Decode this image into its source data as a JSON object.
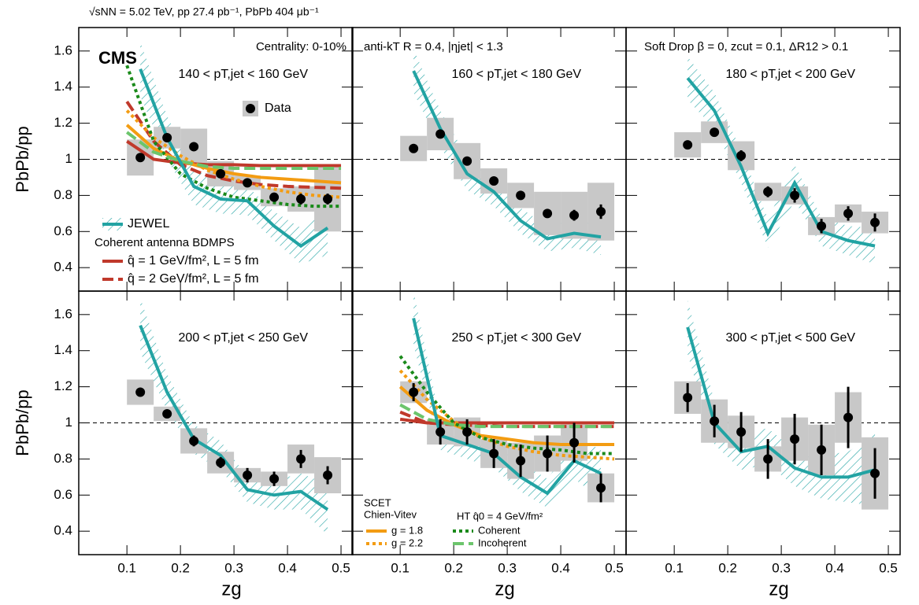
{
  "caption": "√sNN = 5.02 TeV, pp 27.4 pb⁻¹, PbPb 404 μb⁻¹",
  "chart_data": [
    {
      "type": "line",
      "title": "140 < pT,jet < 160 GeV",
      "ylabel": "PbPb/pp",
      "xlim": [
        0.01,
        0.522
      ],
      "ylim": [
        0.27,
        1.73
      ],
      "xticks": [
        0.1,
        0.2,
        0.3,
        0.4,
        0.5
      ],
      "yticks": [
        0.4,
        0.6,
        0.8,
        1,
        1.2,
        1.4,
        1.6
      ],
      "reference_line": 1,
      "annotations": [
        "CMS",
        "Centrality: 0-10%",
        "Coherent antenna BDMPS"
      ],
      "series": [
        {
          "name": "q̂ = 1 GeV/fm², L = 5 fm",
          "color": "#c0392b",
          "dash": "solid",
          "x": [
            0.1,
            0.15,
            0.2,
            0.25,
            0.3,
            0.35,
            0.4,
            0.45,
            0.5
          ],
          "values": [
            1.1,
            1.0,
            0.98,
            0.97,
            0.97,
            0.965,
            0.965,
            0.965,
            0.965
          ]
        },
        {
          "name": "q̂ = 2 GeV/fm², L = 5 fm",
          "color": "#c0392b",
          "dash": "dashed",
          "x": [
            0.1,
            0.15,
            0.2,
            0.25,
            0.3,
            0.35,
            0.4,
            0.45,
            0.5
          ],
          "values": [
            1.32,
            1.1,
            0.97,
            0.91,
            0.88,
            0.86,
            0.85,
            0.845,
            0.84
          ]
        },
        {
          "color": "#f39c12",
          "dash": "solid",
          "x": [
            0.1,
            0.15,
            0.2,
            0.25,
            0.3,
            0.35,
            0.4,
            0.45,
            0.5
          ],
          "values": [
            1.19,
            1.06,
            0.99,
            0.95,
            0.92,
            0.9,
            0.89,
            0.88,
            0.87
          ]
        },
        {
          "color": "#f39c12",
          "dash": "dotted",
          "x": [
            0.1,
            0.15,
            0.2,
            0.25,
            0.3,
            0.35,
            0.4,
            0.45,
            0.5
          ],
          "values": [
            1.27,
            1.12,
            1.02,
            0.94,
            0.89,
            0.85,
            0.82,
            0.8,
            0.79
          ]
        },
        {
          "color": "#1a8a1a",
          "dash": "dotted",
          "x": [
            0.1,
            0.15,
            0.2,
            0.25,
            0.3,
            0.35,
            0.4,
            0.45,
            0.5
          ],
          "values": [
            1.52,
            1.1,
            0.92,
            0.84,
            0.79,
            0.77,
            0.75,
            0.74,
            0.74
          ]
        },
        {
          "color": "#6cc56c",
          "dash": "dashed",
          "x": [
            0.1,
            0.15,
            0.2,
            0.25,
            0.3,
            0.35,
            0.4,
            0.45,
            0.5
          ],
          "values": [
            1.15,
            1.04,
            0.99,
            0.96,
            0.95,
            0.95,
            0.95,
            0.95,
            0.95
          ]
        },
        {
          "name": "JEWEL",
          "color": "#22a3a3",
          "x": [
            0.125,
            0.175,
            0.225,
            0.275,
            0.325,
            0.375,
            0.425,
            0.475
          ],
          "values": [
            1.5,
            1.12,
            0.85,
            0.78,
            0.77,
            0.63,
            0.52,
            0.62
          ],
          "band_errors": [
            0.15,
            0.12,
            0.1,
            0.08,
            0.08,
            0.08,
            0.1,
            0.15
          ]
        },
        {
          "name": "Data",
          "color": "#000000",
          "x": [
            0.125,
            0.175,
            0.225,
            0.275,
            0.325,
            0.375,
            0.425,
            0.475
          ],
          "values": [
            1.01,
            1.12,
            1.07,
            0.92,
            0.87,
            0.79,
            0.78,
            0.78
          ],
          "errors": [
            0.02,
            0.02,
            0.02,
            0.02,
            0.02,
            0.02,
            0.03,
            0.03
          ],
          "sys_errors": [
            0.1,
            0.06,
            0.1,
            0.07,
            0.04,
            0.05,
            0.07,
            0.18
          ]
        }
      ]
    },
    {
      "type": "line",
      "title": "160 < pT,jet < 180 GeV",
      "xlim": [
        0.01,
        0.522
      ],
      "ylim": [
        0.27,
        1.73
      ],
      "xticks": [
        0.1,
        0.2,
        0.3,
        0.4,
        0.5
      ],
      "yticks": [
        0.4,
        0.6,
        0.8,
        1,
        1.2,
        1.4,
        1.6
      ],
      "reference_line": 1,
      "annotations": [
        "anti-kT  R = 0.4,  |ηjet| < 1.3"
      ],
      "series": [
        {
          "color": "#22a3a3",
          "x": [
            0.125,
            0.175,
            0.225,
            0.275,
            0.325,
            0.375,
            0.425,
            0.475
          ],
          "values": [
            1.49,
            1.17,
            0.92,
            0.82,
            0.66,
            0.56,
            0.59,
            0.57
          ],
          "band_errors": [
            0.12,
            0.1,
            0.09,
            0.08,
            0.07,
            0.07,
            0.08,
            0.1
          ]
        },
        {
          "color": "#000000",
          "x": [
            0.125,
            0.175,
            0.225,
            0.275,
            0.325,
            0.375,
            0.425,
            0.475
          ],
          "values": [
            1.06,
            1.14,
            0.99,
            0.88,
            0.8,
            0.7,
            0.69,
            0.71
          ],
          "errors": [
            0.02,
            0.02,
            0.02,
            0.02,
            0.02,
            0.02,
            0.03,
            0.04
          ],
          "sys_errors": [
            0.07,
            0.09,
            0.1,
            0.07,
            0.07,
            0.12,
            0.13,
            0.16
          ]
        }
      ]
    },
    {
      "type": "line",
      "title": "180 < pT,jet < 200 GeV",
      "xlim": [
        0.01,
        0.522
      ],
      "ylim": [
        0.27,
        1.73
      ],
      "xticks": [
        0.1,
        0.2,
        0.3,
        0.4,
        0.5
      ],
      "yticks": [
        0.4,
        0.6,
        0.8,
        1,
        1.2,
        1.4,
        1.6
      ],
      "reference_line": 1,
      "annotations": [
        "Soft Drop  β = 0, zcut = 0.1, ΔR12 > 0.1"
      ],
      "series": [
        {
          "color": "#22a3a3",
          "x": [
            0.125,
            0.175,
            0.225,
            0.275,
            0.325,
            0.375,
            0.425,
            0.475
          ],
          "values": [
            1.45,
            1.27,
            0.96,
            0.59,
            0.87,
            0.6,
            0.55,
            0.52
          ],
          "band_errors": [
            0.12,
            0.1,
            0.09,
            0.08,
            0.1,
            0.08,
            0.08,
            0.1
          ]
        },
        {
          "color": "#000000",
          "x": [
            0.125,
            0.175,
            0.225,
            0.275,
            0.325,
            0.375,
            0.425,
            0.475
          ],
          "values": [
            1.08,
            1.15,
            1.02,
            0.82,
            0.8,
            0.63,
            0.7,
            0.65
          ],
          "errors": [
            0.02,
            0.02,
            0.03,
            0.03,
            0.04,
            0.04,
            0.04,
            0.05
          ],
          "sys_errors": [
            0.07,
            0.06,
            0.08,
            0.05,
            0.05,
            0.05,
            0.05,
            0.06
          ]
        }
      ]
    },
    {
      "type": "line",
      "title": "200 < pT,jet < 250 GeV",
      "ylabel": "PbPb/pp",
      "xlabel": "zg",
      "xlim": [
        0.01,
        0.522
      ],
      "ylim": [
        0.27,
        1.73
      ],
      "xticks": [
        0.1,
        0.2,
        0.3,
        0.4,
        0.5
      ],
      "yticks": [
        0.4,
        0.6,
        0.8,
        1,
        1.2,
        1.4,
        1.6
      ],
      "reference_line": 1,
      "annotations": [],
      "series": [
        {
          "color": "#22a3a3",
          "x": [
            0.125,
            0.175,
            0.225,
            0.275,
            0.325,
            0.375,
            0.425,
            0.475
          ],
          "values": [
            1.54,
            1.17,
            0.91,
            0.82,
            0.63,
            0.6,
            0.62,
            0.52
          ],
          "band_errors": [
            0.15,
            0.1,
            0.08,
            0.08,
            0.07,
            0.08,
            0.1,
            0.14
          ]
        },
        {
          "color": "#000000",
          "x": [
            0.125,
            0.175,
            0.225,
            0.275,
            0.325,
            0.375,
            0.425,
            0.475
          ],
          "values": [
            1.17,
            1.05,
            0.9,
            0.78,
            0.71,
            0.69,
            0.8,
            0.71
          ],
          "errors": [
            0.02,
            0.02,
            0.03,
            0.03,
            0.04,
            0.04,
            0.05,
            0.05
          ],
          "sys_errors": [
            0.07,
            0.04,
            0.07,
            0.06,
            0.04,
            0.04,
            0.08,
            0.1
          ]
        }
      ]
    },
    {
      "type": "line",
      "title": "250 < pT,jet < 300 GeV",
      "xlabel": "zg",
      "xlim": [
        0.01,
        0.522
      ],
      "ylim": [
        0.27,
        1.73
      ],
      "xticks": [
        0.1,
        0.2,
        0.3,
        0.4,
        0.5
      ],
      "yticks": [
        0.4,
        0.6,
        0.8,
        1,
        1.2,
        1.4,
        1.6
      ],
      "reference_line": 1,
      "annotations": [
        "SCET",
        "Chien-Vitev",
        "HT q̂0 = 4 GeV/fm²"
      ],
      "series": [
        {
          "color": "#c0392b",
          "dash": "solid",
          "x": [
            0.1,
            0.15,
            0.2,
            0.25,
            0.3,
            0.35,
            0.4,
            0.45,
            0.5
          ],
          "values": [
            1.02,
            1.0,
            1.0,
            1.0,
            1.0,
            1.0,
            1.0,
            1.0,
            1.0
          ]
        },
        {
          "color": "#c0392b",
          "dash": "dashed",
          "x": [
            0.1,
            0.15,
            0.2,
            0.25,
            0.3,
            0.35,
            0.4,
            0.45,
            0.5
          ],
          "values": [
            1.06,
            1.0,
            0.99,
            0.985,
            0.98,
            0.98,
            0.98,
            0.98,
            0.98
          ]
        },
        {
          "name": "g = 1.8",
          "color": "#f39c12",
          "dash": "solid",
          "x": [
            0.1,
            0.15,
            0.2,
            0.25,
            0.3,
            0.35,
            0.4,
            0.45,
            0.5
          ],
          "values": [
            1.2,
            1.07,
            0.99,
            0.93,
            0.91,
            0.89,
            0.88,
            0.88,
            0.88
          ]
        },
        {
          "name": "g = 2.2",
          "color": "#f39c12",
          "dash": "dotted",
          "x": [
            0.1,
            0.15,
            0.2,
            0.25,
            0.3,
            0.35,
            0.4,
            0.45,
            0.5
          ],
          "values": [
            1.29,
            1.13,
            1.01,
            0.92,
            0.87,
            0.84,
            0.82,
            0.81,
            0.8
          ]
        },
        {
          "name": "Coherent",
          "color": "#1a8a1a",
          "dash": "dotted",
          "x": [
            0.1,
            0.15,
            0.2,
            0.25,
            0.3,
            0.35,
            0.4,
            0.45,
            0.5
          ],
          "values": [
            1.37,
            1.17,
            1.0,
            0.92,
            0.88,
            0.86,
            0.85,
            0.83,
            0.83
          ]
        },
        {
          "name": "Incoherent",
          "color": "#6cc56c",
          "dash": "dashed",
          "x": [
            0.1,
            0.15,
            0.2,
            0.25,
            0.3,
            0.35,
            0.4,
            0.45,
            0.5
          ],
          "values": [
            1.1,
            1.02,
            0.99,
            0.98,
            0.98,
            0.98,
            0.98,
            0.98,
            0.98
          ]
        },
        {
          "color": "#22a3a3",
          "x": [
            0.125,
            0.175,
            0.225,
            0.275,
            0.325,
            0.375,
            0.425,
            0.475
          ],
          "values": [
            1.58,
            0.93,
            0.88,
            0.83,
            0.7,
            0.61,
            0.79,
            0.72
          ],
          "band_errors": [
            0.15,
            0.08,
            0.08,
            0.08,
            0.08,
            0.08,
            0.1,
            0.14
          ]
        },
        {
          "color": "#000000",
          "x": [
            0.125,
            0.175,
            0.225,
            0.275,
            0.325,
            0.375,
            0.425,
            0.475
          ],
          "values": [
            1.17,
            0.95,
            0.95,
            0.83,
            0.79,
            0.83,
            0.89,
            0.64
          ],
          "errors": [
            0.05,
            0.07,
            0.07,
            0.08,
            0.09,
            0.1,
            0.11,
            0.08
          ],
          "sys_errors": [
            0.06,
            0.07,
            0.08,
            0.08,
            0.1,
            0.1,
            0.1,
            0.08
          ]
        }
      ]
    },
    {
      "type": "line",
      "title": "300 < pT,jet < 500 GeV",
      "xlabel": "zg",
      "xlim": [
        0.01,
        0.522
      ],
      "ylim": [
        0.27,
        1.73
      ],
      "xticks": [
        0.1,
        0.2,
        0.3,
        0.4,
        0.5
      ],
      "yticks": [
        0.4,
        0.6,
        0.8,
        1,
        1.2,
        1.4,
        1.6
      ],
      "reference_line": 1,
      "annotations": [],
      "series": [
        {
          "color": "#22a3a3",
          "x": [
            0.125,
            0.175,
            0.225,
            0.275,
            0.325,
            0.375,
            0.425,
            0.475
          ],
          "values": [
            1.53,
            1.0,
            0.84,
            0.87,
            0.75,
            0.7,
            0.7,
            0.74
          ],
          "band_errors": [
            0.15,
            0.12,
            0.1,
            0.1,
            0.1,
            0.12,
            0.14,
            0.2
          ]
        },
        {
          "color": "#000000",
          "x": [
            0.125,
            0.175,
            0.225,
            0.275,
            0.325,
            0.375,
            0.425,
            0.475
          ],
          "values": [
            1.14,
            1.01,
            0.95,
            0.8,
            0.91,
            0.85,
            1.03,
            0.72
          ],
          "errors": [
            0.08,
            0.09,
            0.11,
            0.11,
            0.14,
            0.14,
            0.17,
            0.14
          ],
          "sys_errors": [
            0.09,
            0.12,
            0.09,
            0.07,
            0.12,
            0.14,
            0.14,
            0.2
          ]
        }
      ]
    }
  ]
}
